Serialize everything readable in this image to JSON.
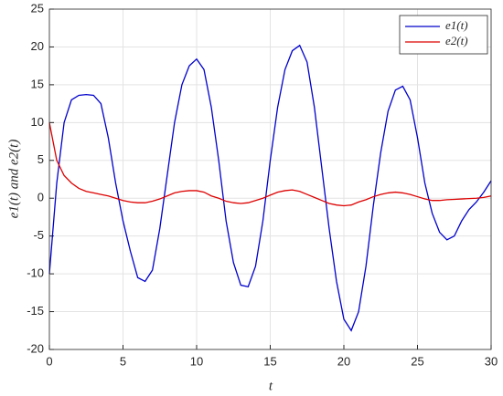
{
  "chart_data": {
    "type": "line",
    "xlabel": "t",
    "ylabel": "e1(t) and e2(t)",
    "x": [
      0,
      0.5,
      1,
      1.5,
      2,
      2.5,
      3,
      3.5,
      4,
      4.5,
      5,
      5.5,
      6,
      6.5,
      7,
      7.5,
      8,
      8.5,
      9,
      9.5,
      10,
      10.5,
      11,
      11.5,
      12,
      12.5,
      13,
      13.5,
      14,
      14.5,
      15,
      15.5,
      16,
      16.5,
      17,
      17.5,
      18,
      18.5,
      19,
      19.5,
      20,
      20.5,
      21,
      21.5,
      22,
      22.5,
      23,
      23.5,
      24,
      24.5,
      25,
      25.5,
      26,
      26.5,
      27,
      27.5,
      28,
      28.5,
      29,
      29.5,
      30
    ],
    "series": [
      {
        "name": "e1(t)",
        "color": "#0000cc",
        "values": [
          -10,
          2,
          10,
          13,
          13.6,
          13.7,
          13.6,
          12.5,
          8,
          2,
          -3,
          -7,
          -10.5,
          -11,
          -9.5,
          -4,
          3,
          10,
          15,
          17.5,
          18.4,
          17,
          12,
          5,
          -3,
          -8.5,
          -11.5,
          -11.7,
          -9,
          -3,
          5,
          12,
          17,
          19.5,
          20.2,
          18,
          12,
          4,
          -4,
          -11,
          -16,
          -17.5,
          -15,
          -9,
          -1,
          6,
          11.5,
          14.3,
          14.8,
          13,
          8,
          2,
          -2,
          -4.5,
          -5.5,
          -5,
          -3,
          -1.5,
          -0.5,
          0.8,
          2.3
        ]
      },
      {
        "name": "e2(t)",
        "color": "#dd0000",
        "values": [
          10,
          5,
          3,
          2,
          1.3,
          0.9,
          0.7,
          0.5,
          0.3,
          0,
          -0.3,
          -0.5,
          -0.6,
          -0.6,
          -0.4,
          -0.1,
          0.3,
          0.7,
          0.9,
          1,
          1,
          0.8,
          0.3,
          0,
          -0.4,
          -0.6,
          -0.7,
          -0.6,
          -0.3,
          0,
          0.4,
          0.8,
          1,
          1.1,
          0.9,
          0.5,
          0.1,
          -0.3,
          -0.7,
          -0.9,
          -1,
          -0.9,
          -0.5,
          -0.2,
          0.2,
          0.5,
          0.7,
          0.8,
          0.7,
          0.5,
          0.2,
          -0.1,
          -0.3,
          -0.3,
          -0.2,
          -0.15,
          -0.1,
          -0.05,
          0,
          0.1,
          0.3
        ]
      }
    ],
    "xlim": [
      0,
      30
    ],
    "xticks": [
      0,
      5,
      10,
      15,
      20,
      25,
      30
    ],
    "ylim": [
      -20,
      25
    ],
    "yticks": [
      -20,
      -15,
      -10,
      -5,
      0,
      5,
      10,
      15,
      20,
      25
    ],
    "grid": true,
    "legend": "top-right"
  }
}
